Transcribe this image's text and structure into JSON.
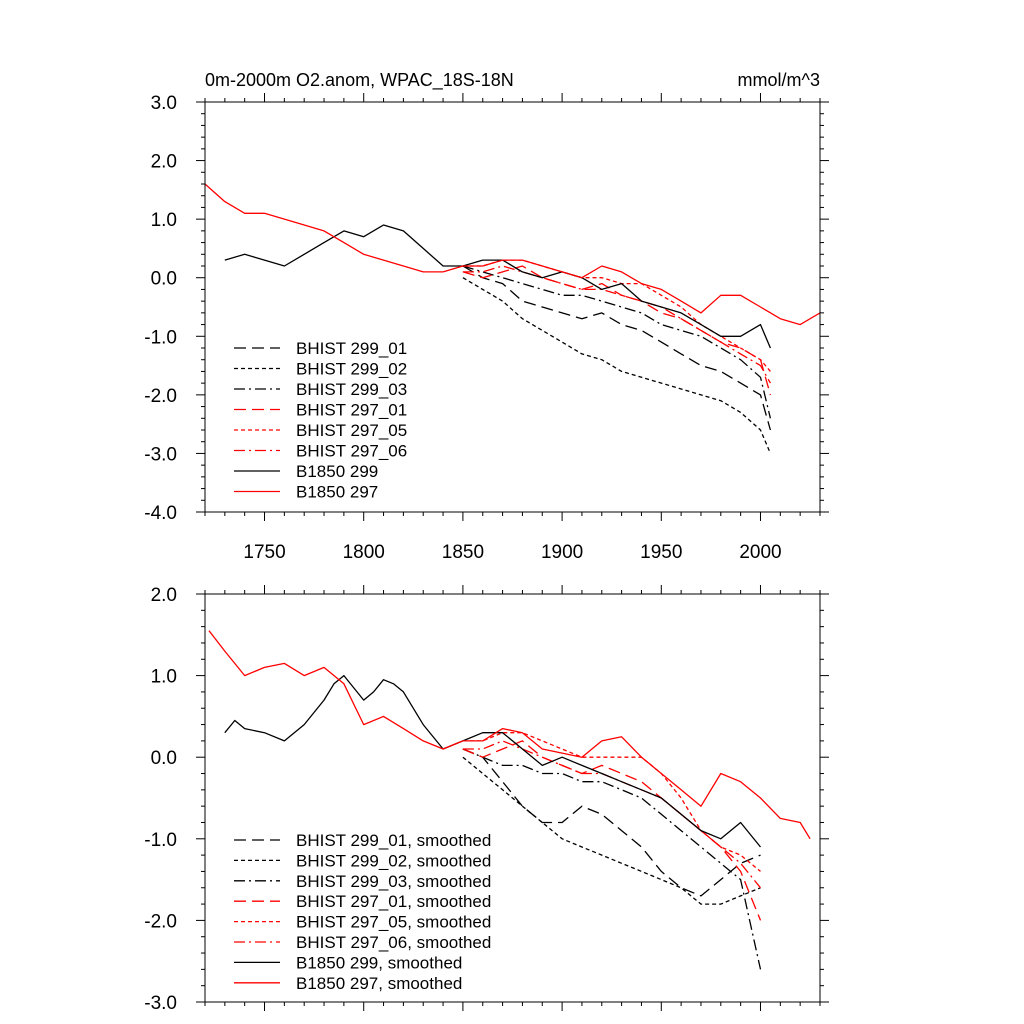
{
  "chart_data": [
    {
      "type": "line",
      "title": "0m-2000m O2.anom, WPAC_18S-18N",
      "units": "mmol/m^3",
      "xlim": [
        1720,
        2030
      ],
      "ylim": [
        -4.0,
        3.0
      ],
      "x_ticks": [
        1750,
        1800,
        1850,
        1900,
        1950,
        2000
      ],
      "x_tick_labels": [
        "1750",
        "1800",
        "1850",
        "1900",
        "1950",
        "2000"
      ],
      "y_ticks": [
        -4,
        -3,
        -2,
        -1,
        0,
        1,
        2,
        3
      ],
      "y_tick_labels": [
        "-4.0",
        "-3.0",
        "-2.0",
        "-1.0",
        "0.0",
        "1.0",
        "2.0",
        "3.0"
      ],
      "legend_position": "bottom-left",
      "series": [
        {
          "name": "BHIST 299_01",
          "color": "#000000",
          "dash": "long-dash",
          "x": [
            1850,
            1860,
            1870,
            1880,
            1890,
            1900,
            1910,
            1920,
            1930,
            1940,
            1950,
            1960,
            1970,
            1980,
            1990,
            2000,
            2005
          ],
          "values": [
            0.2,
            0.0,
            -0.1,
            -0.4,
            -0.5,
            -0.6,
            -0.7,
            -0.6,
            -0.8,
            -0.9,
            -1.1,
            -1.3,
            -1.5,
            -1.6,
            -1.8,
            -2.0,
            -2.6
          ]
        },
        {
          "name": "BHIST 299_02",
          "color": "#000000",
          "dash": "dotted",
          "x": [
            1850,
            1860,
            1870,
            1880,
            1890,
            1900,
            1910,
            1920,
            1930,
            1940,
            1950,
            1960,
            1970,
            1980,
            1990,
            2000,
            2005
          ],
          "values": [
            0.0,
            -0.2,
            -0.4,
            -0.7,
            -0.9,
            -1.1,
            -1.3,
            -1.4,
            -1.6,
            -1.7,
            -1.8,
            -1.9,
            -2.0,
            -2.1,
            -2.3,
            -2.6,
            -3.0
          ]
        },
        {
          "name": "BHIST 299_03",
          "color": "#000000",
          "dash": "dash-dot",
          "x": [
            1850,
            1860,
            1870,
            1880,
            1890,
            1900,
            1910,
            1920,
            1930,
            1940,
            1950,
            1960,
            1970,
            1980,
            1990,
            2000,
            2005
          ],
          "values": [
            0.2,
            0.1,
            0.0,
            -0.1,
            -0.2,
            -0.3,
            -0.3,
            -0.4,
            -0.5,
            -0.6,
            -0.8,
            -0.9,
            -1.0,
            -1.2,
            -1.4,
            -1.7,
            -2.4
          ]
        },
        {
          "name": "BHIST 297_01",
          "color": "#ff0000",
          "dash": "long-dash",
          "x": [
            1850,
            1860,
            1870,
            1880,
            1890,
            1900,
            1910,
            1920,
            1930,
            1940,
            1950,
            1960,
            1970,
            1980,
            1990,
            2000,
            2005
          ],
          "values": [
            0.1,
            0.0,
            0.1,
            0.2,
            0.0,
            -0.1,
            -0.2,
            -0.1,
            -0.3,
            -0.4,
            -0.6,
            -0.7,
            -0.9,
            -1.1,
            -1.2,
            -1.4,
            -2.0
          ]
        },
        {
          "name": "BHIST 297_05",
          "color": "#ff0000",
          "dash": "dotted",
          "x": [
            1850,
            1860,
            1870,
            1880,
            1890,
            1900,
            1910,
            1920,
            1930,
            1940,
            1950,
            1960,
            1970,
            1980,
            1990,
            2000,
            2005
          ],
          "values": [
            0.2,
            0.2,
            0.3,
            0.3,
            0.2,
            0.1,
            0.0,
            0.0,
            -0.1,
            -0.1,
            -0.3,
            -0.5,
            -0.8,
            -1.0,
            -1.2,
            -1.4,
            -1.6
          ]
        },
        {
          "name": "BHIST 297_06",
          "color": "#ff0000",
          "dash": "dash-dot",
          "x": [
            1850,
            1860,
            1870,
            1880,
            1890,
            1900,
            1910,
            1920,
            1930,
            1940,
            1950,
            1960,
            1970,
            1980,
            1990,
            2000,
            2005
          ],
          "values": [
            0.1,
            0.1,
            0.2,
            0.1,
            0.0,
            -0.1,
            -0.2,
            -0.2,
            -0.3,
            -0.4,
            -0.5,
            -0.7,
            -0.9,
            -1.1,
            -1.3,
            -1.5,
            -1.8
          ]
        },
        {
          "name": "B1850 299",
          "color": "#000000",
          "dash": "solid",
          "x": [
            1730,
            1740,
            1750,
            1760,
            1770,
            1780,
            1790,
            1800,
            1810,
            1820,
            1830,
            1840,
            1850,
            1860,
            1870,
            1880,
            1890,
            1900,
            1910,
            1920,
            1930,
            1940,
            1950,
            1960,
            1970,
            1980,
            1990,
            2000,
            2005
          ],
          "values": [
            0.3,
            0.4,
            0.3,
            0.2,
            0.4,
            0.6,
            0.8,
            0.7,
            0.9,
            0.8,
            0.5,
            0.2,
            0.2,
            0.3,
            0.3,
            0.1,
            0.0,
            0.1,
            0.0,
            -0.2,
            -0.1,
            -0.4,
            -0.5,
            -0.6,
            -0.8,
            -1.0,
            -1.0,
            -0.8,
            -1.2
          ]
        },
        {
          "name": "B1850 297",
          "color": "#ff0000",
          "dash": "solid",
          "x": [
            1720,
            1730,
            1740,
            1750,
            1760,
            1770,
            1780,
            1790,
            1800,
            1810,
            1820,
            1830,
            1840,
            1850,
            1860,
            1870,
            1880,
            1890,
            1900,
            1910,
            1920,
            1930,
            1940,
            1950,
            1960,
            1970,
            1980,
            1990,
            2000,
            2010,
            2020,
            2030
          ],
          "values": [
            1.6,
            1.3,
            1.1,
            1.1,
            1.0,
            0.9,
            0.8,
            0.6,
            0.4,
            0.3,
            0.2,
            0.1,
            0.1,
            0.2,
            0.2,
            0.3,
            0.3,
            0.2,
            0.1,
            0.0,
            0.2,
            0.1,
            -0.1,
            -0.2,
            -0.4,
            -0.6,
            -0.3,
            -0.3,
            -0.5,
            -0.7,
            -0.8,
            -0.6
          ]
        }
      ]
    },
    {
      "type": "line",
      "xlim": [
        1720,
        2030
      ],
      "ylim": [
        -3.0,
        2.0
      ],
      "x_ticks": [
        1750,
        1800,
        1850,
        1900,
        1950,
        2000
      ],
      "y_ticks": [
        -3,
        -2,
        -1,
        0,
        1,
        2
      ],
      "y_tick_labels": [
        "-3.0",
        "-2.0",
        "-1.0",
        "0.0",
        "1.0",
        "2.0"
      ],
      "legend_position": "bottom-left",
      "series": [
        {
          "name": "BHIST 299_01, smoothed",
          "color": "#000000",
          "dash": "long-dash",
          "x": [
            1850,
            1860,
            1870,
            1880,
            1890,
            1900,
            1910,
            1920,
            1930,
            1940,
            1950,
            1960,
            1970,
            1980,
            1990,
            2000
          ],
          "values": [
            0.1,
            0.0,
            -0.3,
            -0.6,
            -0.8,
            -0.8,
            -0.6,
            -0.7,
            -0.9,
            -1.1,
            -1.4,
            -1.6,
            -1.7,
            -1.5,
            -1.3,
            -1.2
          ]
        },
        {
          "name": "BHIST 299_02, smoothed",
          "color": "#000000",
          "dash": "dotted",
          "x": [
            1850,
            1860,
            1870,
            1880,
            1890,
            1900,
            1910,
            1920,
            1930,
            1940,
            1950,
            1960,
            1970,
            1980,
            1990,
            2000
          ],
          "values": [
            0.0,
            -0.2,
            -0.4,
            -0.6,
            -0.8,
            -1.0,
            -1.1,
            -1.2,
            -1.3,
            -1.4,
            -1.5,
            -1.6,
            -1.8,
            -1.8,
            -1.7,
            -1.6
          ]
        },
        {
          "name": "BHIST 299_03, smoothed",
          "color": "#000000",
          "dash": "dash-dot",
          "x": [
            1850,
            1860,
            1870,
            1880,
            1890,
            1900,
            1910,
            1920,
            1930,
            1940,
            1950,
            1960,
            1970,
            1980,
            1990,
            2000
          ],
          "values": [
            0.1,
            0.0,
            -0.1,
            -0.1,
            -0.2,
            -0.2,
            -0.3,
            -0.3,
            -0.4,
            -0.5,
            -0.7,
            -0.9,
            -1.1,
            -1.3,
            -1.5,
            -2.6
          ]
        },
        {
          "name": "BHIST 297_01, smoothed",
          "color": "#ff0000",
          "dash": "long-dash",
          "x": [
            1850,
            1860,
            1870,
            1880,
            1890,
            1900,
            1910,
            1920,
            1930,
            1940,
            1950,
            1960,
            1970,
            1980,
            1990,
            2000
          ],
          "values": [
            0.1,
            0.0,
            0.1,
            0.2,
            0.0,
            -0.1,
            -0.2,
            -0.1,
            -0.2,
            -0.3,
            -0.5,
            -0.7,
            -0.9,
            -1.1,
            -1.4,
            -2.0
          ]
        },
        {
          "name": "BHIST 297_05, smoothed",
          "color": "#ff0000",
          "dash": "dotted",
          "x": [
            1850,
            1860,
            1870,
            1880,
            1890,
            1900,
            1910,
            1920,
            1930,
            1940,
            1950,
            1960,
            1970,
            1980,
            1990,
            2000
          ],
          "values": [
            0.2,
            0.2,
            0.3,
            0.3,
            0.2,
            0.1,
            0.0,
            0.0,
            0.0,
            0.0,
            -0.2,
            -0.5,
            -0.9,
            -1.1,
            -1.2,
            -1.4
          ]
        },
        {
          "name": "BHIST 297_06, smoothed",
          "color": "#ff0000",
          "dash": "dash-dot",
          "x": [
            1850,
            1860,
            1870,
            1880,
            1890,
            1900,
            1910,
            1920,
            1930,
            1940,
            1950,
            1960,
            1970,
            1980,
            1990,
            2000
          ],
          "values": [
            0.1,
            0.1,
            0.2,
            0.1,
            0.0,
            -0.1,
            -0.2,
            -0.2,
            -0.3,
            -0.4,
            -0.5,
            -0.7,
            -0.9,
            -1.1,
            -1.3,
            -1.6
          ]
        },
        {
          "name": "B1850 299, smoothed",
          "color": "#000000",
          "dash": "solid",
          "x": [
            1730,
            1735,
            1740,
            1750,
            1760,
            1770,
            1780,
            1785,
            1790,
            1800,
            1805,
            1810,
            1815,
            1820,
            1830,
            1840,
            1850,
            1860,
            1870,
            1880,
            1890,
            1900,
            1910,
            1920,
            1930,
            1940,
            1950,
            1960,
            1970,
            1980,
            1990,
            2000
          ],
          "values": [
            0.3,
            0.45,
            0.35,
            0.3,
            0.2,
            0.4,
            0.7,
            0.9,
            1.0,
            0.7,
            0.8,
            0.95,
            0.9,
            0.8,
            0.4,
            0.1,
            0.2,
            0.3,
            0.3,
            0.1,
            -0.1,
            0.0,
            -0.1,
            -0.2,
            -0.3,
            -0.4,
            -0.5,
            -0.7,
            -0.9,
            -1.0,
            -0.8,
            -1.1
          ]
        },
        {
          "name": "B1850 297, smoothed",
          "color": "#ff0000",
          "dash": "solid",
          "x": [
            1722,
            1730,
            1740,
            1750,
            1760,
            1770,
            1780,
            1790,
            1800,
            1810,
            1820,
            1830,
            1840,
            1850,
            1860,
            1870,
            1880,
            1890,
            1900,
            1910,
            1920,
            1930,
            1940,
            1950,
            1960,
            1970,
            1980,
            1990,
            2000,
            2010,
            2020,
            2025
          ],
          "values": [
            1.55,
            1.3,
            1.0,
            1.1,
            1.15,
            1.0,
            1.1,
            0.9,
            0.4,
            0.5,
            0.35,
            0.2,
            0.1,
            0.2,
            0.2,
            0.35,
            0.3,
            0.1,
            0.05,
            0.0,
            0.2,
            0.25,
            0.0,
            -0.2,
            -0.4,
            -0.6,
            -0.2,
            -0.3,
            -0.5,
            -0.75,
            -0.8,
            -1.0
          ]
        }
      ]
    }
  ]
}
